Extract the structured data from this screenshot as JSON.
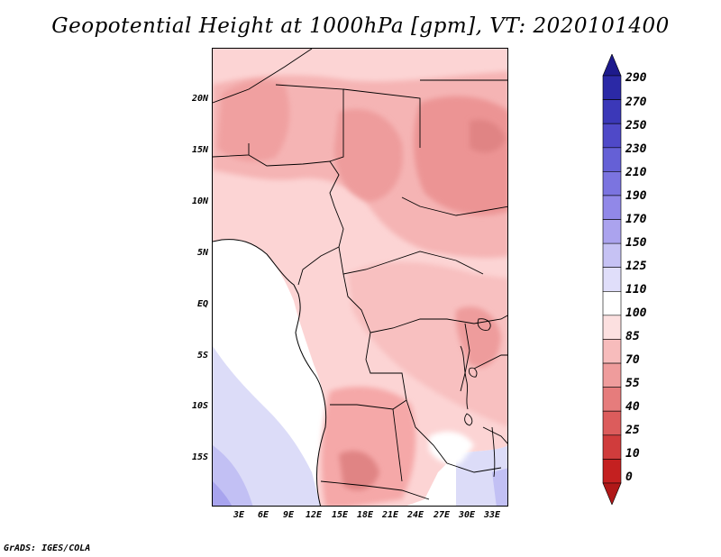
{
  "title": "Geopotential Height at 1000hPa [gpm], VT: 2020101400",
  "footer": "GrADS: IGES/COLA",
  "map": {
    "region": "Central Africa",
    "lat_ticks": [
      "20N",
      "15N",
      "10N",
      "5N",
      "EQ",
      "5S",
      "10S",
      "15S"
    ],
    "lon_ticks": [
      "3E",
      "6E",
      "9E",
      "12E",
      "15E",
      "18E",
      "21E",
      "24E",
      "27E",
      "30E",
      "33E"
    ],
    "colors": {
      "ocean_fill": "#ffffff",
      "land_low": "#fcd4d4",
      "land_mid": "#f5a8a8",
      "land_high": "#ec9494",
      "cool_light": "#dcdcf8",
      "cool_mid": "#c2c0f4",
      "cool_strong": "#a8a4ee",
      "border": "#000000"
    }
  },
  "colorbar": {
    "labels": [
      "290",
      "270",
      "250",
      "230",
      "210",
      "190",
      "170",
      "150",
      "125",
      "110",
      "100",
      "85",
      "70",
      "55",
      "40",
      "25",
      "10",
      "0"
    ],
    "colors": [
      "#1d1a8c",
      "#2b29a6",
      "#3b38b8",
      "#4f49c8",
      "#6560d6",
      "#7b74e0",
      "#9188e8",
      "#aba3ee",
      "#c6c2f4",
      "#e0defa",
      "#ffffff",
      "#fce0e0",
      "#f7bcbc",
      "#ef9c9c",
      "#e67c7c",
      "#dc5c5c",
      "#d03c3c",
      "#c42020",
      "#b01818"
    ]
  }
}
